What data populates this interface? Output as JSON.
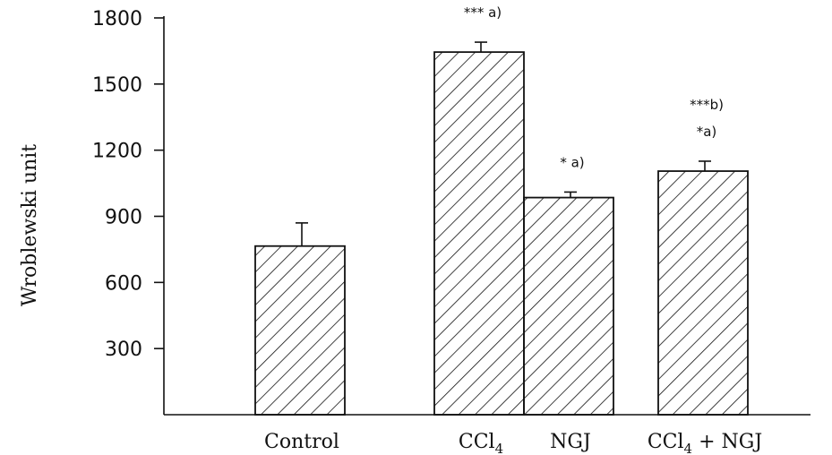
{
  "chart_data": {
    "type": "bar",
    "ylabel": "Wroblewski unit",
    "xlabel": "",
    "ylim": [
      0,
      1800
    ],
    "yticks": [
      "1800",
      "1500",
      "1200",
      "900",
      "600",
      "300"
    ],
    "ytick_values": [
      1800,
      1500,
      1200,
      900,
      600,
      300
    ],
    "categories": [
      {
        "main": "Control",
        "sub": "",
        "suffix": ""
      },
      {
        "main": "CCl",
        "sub": "4",
        "suffix": ""
      },
      {
        "main": "NGJ",
        "sub": "",
        "suffix": ""
      },
      {
        "main": "CCl",
        "sub": "4",
        "suffix": " + NGJ"
      }
    ],
    "values": [
      765,
      1645,
      985,
      1105
    ],
    "errors": [
      105,
      45,
      25,
      45
    ],
    "annotations": [
      [],
      [
        "*** a)"
      ],
      [
        "* a)"
      ],
      [
        "***b)",
        "*a)"
      ]
    ],
    "grid": false,
    "legend": false,
    "bar_fill": "hatched",
    "color": "#111111"
  }
}
